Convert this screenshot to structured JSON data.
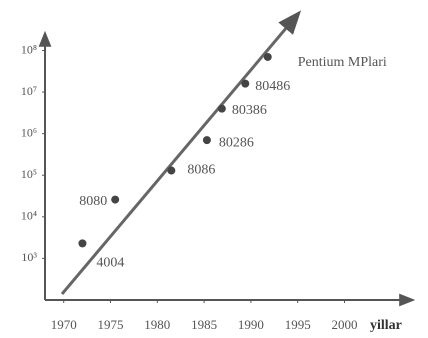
{
  "chart_data": {
    "type": "scatter",
    "x_label": "yillar",
    "x": [
      1972,
      1975.5,
      1981.5,
      1985.3,
      1986.9,
      1989.4,
      1991.8
    ],
    "values": [
      2300,
      26000,
      130000,
      700000,
      4000000,
      16000000,
      70000000
    ],
    "labels": [
      "4004",
      "8080",
      "8086",
      "80286",
      "80386",
      "80486",
      "Pentium MPlari"
    ],
    "color": "#444444",
    "log_y": true,
    "xlim": [
      1968,
      2007
    ],
    "xticks": [
      1970,
      1975,
      1980,
      1985,
      1990,
      1995,
      2000
    ],
    "ylim": [
      100,
      200000000
    ],
    "yticks": [
      {
        "value": 1000,
        "label": "10³"
      },
      {
        "value": 10000,
        "label": "10⁴"
      },
      {
        "value": 100000,
        "label": "10⁵"
      },
      {
        "value": 1000000,
        "label": "10⁶"
      },
      {
        "value": 10000000,
        "label": "10⁷"
      },
      {
        "value": 100000000,
        "label": "10⁸"
      }
    ]
  }
}
